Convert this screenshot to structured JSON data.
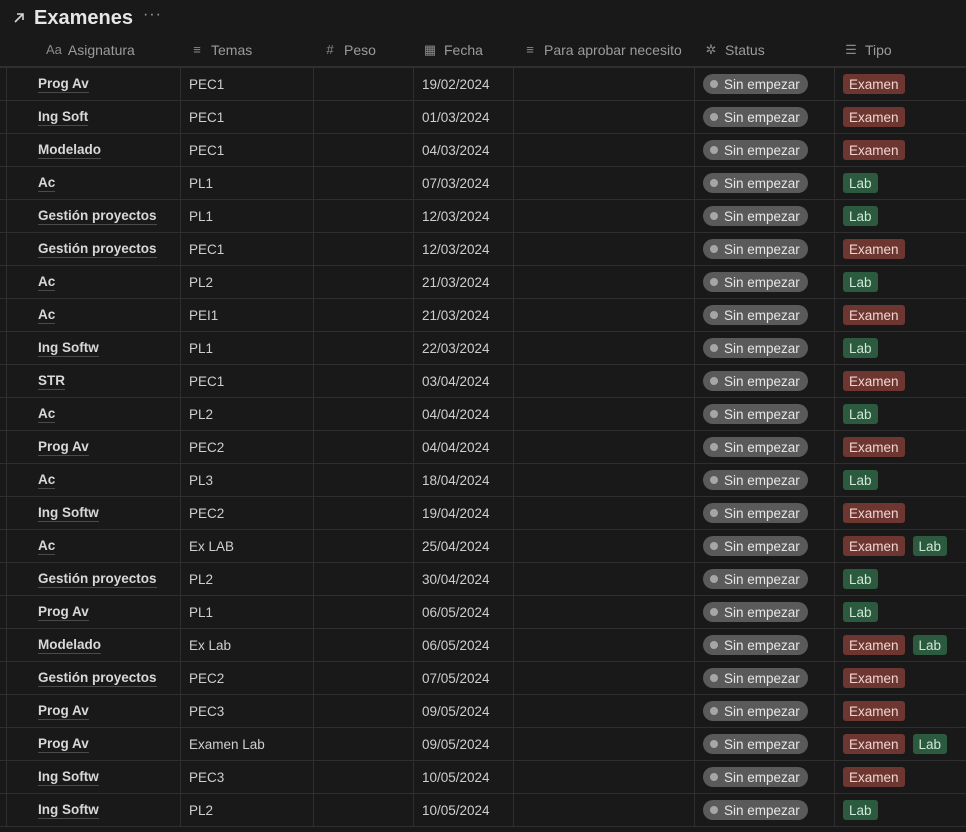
{
  "title": "Examenes",
  "title_more": "···",
  "columns": [
    {
      "icon": "Aa",
      "icon_name": "title-icon",
      "label": "Asignatura"
    },
    {
      "icon": "≡",
      "icon_name": "text-icon",
      "label": "Temas"
    },
    {
      "icon": "#",
      "icon_name": "number-icon",
      "label": "Peso"
    },
    {
      "icon": "▦",
      "icon_name": "calendar-icon",
      "label": "Fecha"
    },
    {
      "icon": "≡",
      "icon_name": "text-icon",
      "label": "Para aprobar necesito"
    },
    {
      "icon": "✲",
      "icon_name": "status-icon",
      "label": "Status"
    },
    {
      "icon": "☰",
      "icon_name": "list-icon",
      "label": "Tipo"
    }
  ],
  "colors": {
    "examen": "#6e3630",
    "lab": "#2b5a3e",
    "status": "#5a5a5a"
  },
  "rows": [
    {
      "asignatura": "Prog Av",
      "temas": "PEC1",
      "fecha": "19/02/2024",
      "status": "Sin empezar",
      "tipo": [
        "Examen"
      ]
    },
    {
      "asignatura": "Ing Soft",
      "temas": "PEC1",
      "fecha": "01/03/2024",
      "status": "Sin empezar",
      "tipo": [
        "Examen"
      ]
    },
    {
      "asignatura": "Modelado",
      "temas": "PEC1",
      "fecha": "04/03/2024",
      "status": "Sin empezar",
      "tipo": [
        "Examen"
      ]
    },
    {
      "asignatura": "Ac",
      "temas": "PL1",
      "fecha": "07/03/2024",
      "status": "Sin empezar",
      "tipo": [
        "Lab"
      ]
    },
    {
      "asignatura": "Gestión proyectos",
      "temas": "PL1",
      "fecha": "12/03/2024",
      "status": "Sin empezar",
      "tipo": [
        "Lab"
      ]
    },
    {
      "asignatura": "Gestión proyectos",
      "temas": "PEC1",
      "fecha": "12/03/2024",
      "status": "Sin empezar",
      "tipo": [
        "Examen"
      ]
    },
    {
      "asignatura": "Ac",
      "temas": "PL2",
      "fecha": "21/03/2024",
      "status": "Sin empezar",
      "tipo": [
        "Lab"
      ]
    },
    {
      "asignatura": "Ac",
      "temas": "PEI1",
      "fecha": "21/03/2024",
      "status": "Sin empezar",
      "tipo": [
        "Examen"
      ]
    },
    {
      "asignatura": "Ing Softw",
      "temas": "PL1",
      "fecha": "22/03/2024",
      "status": "Sin empezar",
      "tipo": [
        "Lab"
      ]
    },
    {
      "asignatura": "STR",
      "temas": "PEC1",
      "fecha": "03/04/2024",
      "status": "Sin empezar",
      "tipo": [
        "Examen"
      ]
    },
    {
      "asignatura": "Ac",
      "temas": "PL2",
      "fecha": "04/04/2024",
      "status": "Sin empezar",
      "tipo": [
        "Lab"
      ]
    },
    {
      "asignatura": "Prog Av",
      "temas": "PEC2",
      "fecha": "04/04/2024",
      "status": "Sin empezar",
      "tipo": [
        "Examen"
      ]
    },
    {
      "asignatura": "Ac",
      "temas": "PL3",
      "fecha": "18/04/2024",
      "status": "Sin empezar",
      "tipo": [
        "Lab"
      ]
    },
    {
      "asignatura": "Ing Softw",
      "temas": "PEC2",
      "fecha": "19/04/2024",
      "status": "Sin empezar",
      "tipo": [
        "Examen"
      ]
    },
    {
      "asignatura": "Ac",
      "temas": "Ex LAB",
      "fecha": "25/04/2024",
      "status": "Sin empezar",
      "tipo": [
        "Examen",
        "Lab"
      ]
    },
    {
      "asignatura": "Gestión proyectos",
      "temas": "PL2",
      "fecha": "30/04/2024",
      "status": "Sin empezar",
      "tipo": [
        "Lab"
      ]
    },
    {
      "asignatura": "Prog Av",
      "temas": "PL1",
      "fecha": "06/05/2024",
      "status": "Sin empezar",
      "tipo": [
        "Lab"
      ]
    },
    {
      "asignatura": "Modelado",
      "temas": "Ex Lab",
      "fecha": "06/05/2024",
      "status": "Sin empezar",
      "tipo": [
        "Examen",
        "Lab"
      ]
    },
    {
      "asignatura": "Gestión proyectos",
      "temas": "PEC2",
      "fecha": "07/05/2024",
      "status": "Sin empezar",
      "tipo": [
        "Examen"
      ]
    },
    {
      "asignatura": "Prog Av",
      "temas": "PEC3",
      "fecha": "09/05/2024",
      "status": "Sin empezar",
      "tipo": [
        "Examen"
      ]
    },
    {
      "asignatura": "Prog Av",
      "temas": "Examen Lab",
      "fecha": "09/05/2024",
      "status": "Sin empezar",
      "tipo": [
        "Examen",
        "Lab"
      ]
    },
    {
      "asignatura": "Ing Softw",
      "temas": "PEC3",
      "fecha": "10/05/2024",
      "status": "Sin empezar",
      "tipo": [
        "Examen"
      ]
    },
    {
      "asignatura": "Ing Softw",
      "temas": "PL2",
      "fecha": "10/05/2024",
      "status": "Sin empezar",
      "tipo": [
        "Lab"
      ]
    }
  ]
}
